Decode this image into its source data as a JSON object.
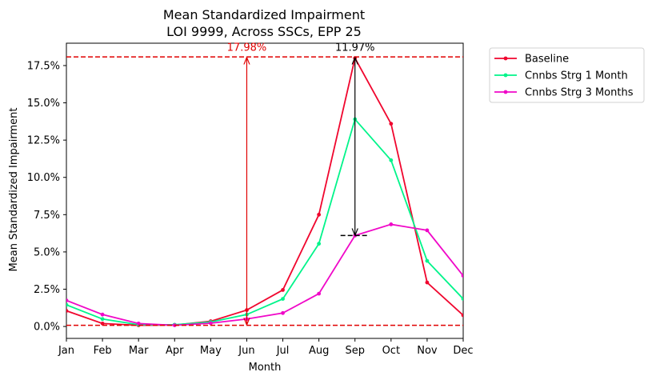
{
  "chart_data": {
    "type": "line",
    "title": "Mean Standardized Impairment",
    "subtitle": "LOI 9999, Across SSCs, EPP 25",
    "xlabel": "Month",
    "ylabel": "Mean Standardized Impairment",
    "categories": [
      "Jan",
      "Feb",
      "Mar",
      "Apr",
      "May",
      "Jun",
      "Jul",
      "Aug",
      "Sep",
      "Oct",
      "Nov",
      "Dec"
    ],
    "ylim": [
      -0.8,
      19.0
    ],
    "yticks": [
      0.0,
      2.5,
      5.0,
      7.5,
      10.0,
      12.5,
      15.0,
      17.5
    ],
    "ytick_labels": [
      "0.0%",
      "2.5%",
      "5.0%",
      "7.5%",
      "10.0%",
      "12.5%",
      "15.0%",
      "17.5%"
    ],
    "grid": false,
    "legend_position": "outside-top-right",
    "series": [
      {
        "name": "Baseline",
        "color": "#f0062e",
        "values": [
          1.05,
          0.2,
          0.08,
          0.1,
          0.35,
          1.1,
          2.45,
          7.5,
          18.0,
          13.6,
          2.95,
          0.75
        ]
      },
      {
        "name": "Cnnbs Strg 1 Month",
        "color": "#00f48a",
        "values": [
          1.45,
          0.5,
          0.12,
          0.12,
          0.3,
          0.8,
          1.85,
          5.55,
          13.9,
          11.15,
          4.4,
          1.85
        ]
      },
      {
        "name": "Cnnbs Strg 3 Months",
        "color": "#f008c8",
        "values": [
          1.75,
          0.8,
          0.2,
          0.08,
          0.22,
          0.5,
          0.9,
          2.2,
          6.1,
          6.85,
          6.45,
          3.4
        ]
      }
    ],
    "reference_lines": [
      {
        "y": 18.08,
        "color": "#e00000",
        "style": "dashed"
      },
      {
        "y": 0.08,
        "color": "#e00000",
        "style": "dashed"
      }
    ],
    "annotations": [
      {
        "text": "17.98%",
        "x": "Jun",
        "y_from": 0.1,
        "y_to": 18.05,
        "color": "#e00000",
        "arrow": "both"
      },
      {
        "text": "11.97%",
        "x": "Sep",
        "y_from": 6.1,
        "y_to": 18.05,
        "color": "#000000",
        "arrow": "both",
        "dash_y": 6.1,
        "dash_from": 7.6,
        "dash_to": 8.4
      }
    ]
  }
}
